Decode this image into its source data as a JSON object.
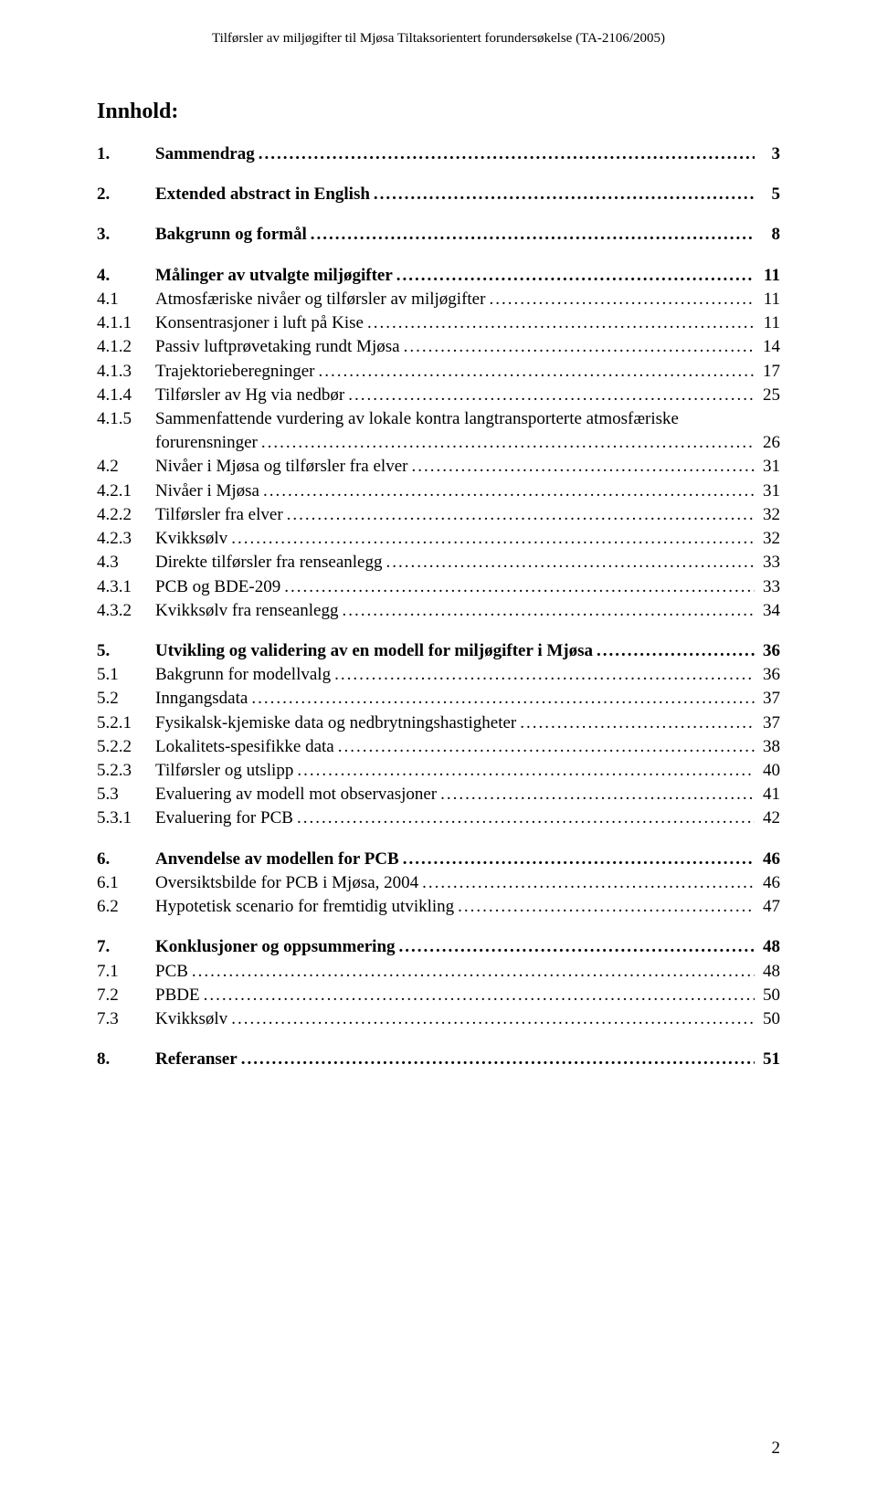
{
  "header": "Tilførsler av miljøgifter til Mjøsa Tiltaksorientert forundersøkelse (TA-2106/2005)",
  "heading": "Innhold:",
  "page_number": "2",
  "sections": [
    {
      "entries": [
        {
          "num": "1.",
          "title": "Sammendrag",
          "page": "3",
          "bold": true
        }
      ]
    },
    {
      "entries": [
        {
          "num": "2.",
          "title": "Extended abstract in English",
          "page": "5",
          "bold": true
        }
      ]
    },
    {
      "entries": [
        {
          "num": "3.",
          "title": "Bakgrunn og formål",
          "page": "8",
          "bold": true
        }
      ]
    },
    {
      "entries": [
        {
          "num": "4.",
          "title": "Målinger av utvalgte miljøgifter",
          "page": "11",
          "bold": true
        },
        {
          "num": "4.1",
          "title": "Atmosfæriske nivåer og tilførsler av miljøgifter",
          "page": "11",
          "bold": false
        },
        {
          "num": "4.1.1",
          "title": "Konsentrasjoner i luft på Kise",
          "page": "11",
          "bold": false
        },
        {
          "num": "4.1.2",
          "title": "Passiv luftprøvetaking rundt Mjøsa",
          "page": "14",
          "bold": false
        },
        {
          "num": "4.1.3",
          "title": "Trajektorieberegninger",
          "page": "17",
          "bold": false
        },
        {
          "num": "4.1.4",
          "title": "Tilførsler av Hg via nedbør",
          "page": "25",
          "bold": false
        },
        {
          "num": "4.1.5",
          "title": "Sammenfattende vurdering av lokale kontra langtransporterte atmosfæriske",
          "page": "",
          "bold": false,
          "no_leader": true
        },
        {
          "num": "",
          "title": "forurensninger",
          "page": "26",
          "bold": false
        },
        {
          "num": "4.2",
          "title": "Nivåer i Mjøsa og tilførsler fra elver",
          "page": "31",
          "bold": false
        },
        {
          "num": "4.2.1",
          "title": "Nivåer i Mjøsa",
          "page": "31",
          "bold": false
        },
        {
          "num": "4.2.2",
          "title": "Tilførsler fra elver",
          "page": "32",
          "bold": false
        },
        {
          "num": "4.2.3",
          "title": "Kvikksølv",
          "page": "32",
          "bold": false
        },
        {
          "num": "4.3",
          "title": "Direkte tilførsler fra renseanlegg",
          "page": "33",
          "bold": false
        },
        {
          "num": "4.3.1",
          "title": "PCB og BDE-209",
          "page": "33",
          "bold": false
        },
        {
          "num": "4.3.2",
          "title": "Kvikksølv fra renseanlegg",
          "page": "34",
          "bold": false
        }
      ]
    },
    {
      "entries": [
        {
          "num": "5.",
          "title": "Utvikling og validering av en modell for miljøgifter i Mjøsa",
          "page": "36",
          "bold": true
        },
        {
          "num": "5.1",
          "title": "Bakgrunn for modellvalg",
          "page": "36",
          "bold": false
        },
        {
          "num": "5.2",
          "title": "Inngangsdata",
          "page": "37",
          "bold": false
        },
        {
          "num": "5.2.1",
          "title": "Fysikalsk-kjemiske data og nedbrytningshastigheter",
          "page": "37",
          "bold": false
        },
        {
          "num": "5.2.2",
          "title": "Lokalitets-spesifikke data",
          "page": "38",
          "bold": false
        },
        {
          "num": "5.2.3",
          "title": "Tilførsler og utslipp",
          "page": "40",
          "bold": false
        },
        {
          "num": "5.3",
          "title": "Evaluering av modell mot observasjoner",
          "page": "41",
          "bold": false
        },
        {
          "num": "5.3.1",
          "title": "Evaluering for PCB",
          "page": "42",
          "bold": false
        }
      ]
    },
    {
      "entries": [
        {
          "num": "6.",
          "title": "Anvendelse av modellen for PCB",
          "page": "46",
          "bold": true
        },
        {
          "num": "6.1",
          "title": "Oversiktsbilde for PCB i Mjøsa, 2004",
          "page": "46",
          "bold": false
        },
        {
          "num": "6.2",
          "title": "Hypotetisk scenario for fremtidig utvikling",
          "page": "47",
          "bold": false
        }
      ]
    },
    {
      "entries": [
        {
          "num": "7.",
          "title": "Konklusjoner og oppsummering",
          "page": "48",
          "bold": true
        },
        {
          "num": "7.1",
          "title": "PCB",
          "page": "48",
          "bold": false
        },
        {
          "num": "7.2",
          "title": "PBDE",
          "page": "50",
          "bold": false
        },
        {
          "num": "7.3",
          "title": "Kvikksølv",
          "page": "50",
          "bold": false
        }
      ]
    },
    {
      "entries": [
        {
          "num": "8.",
          "title": "Referanser",
          "page": "51",
          "bold": true
        }
      ]
    }
  ]
}
